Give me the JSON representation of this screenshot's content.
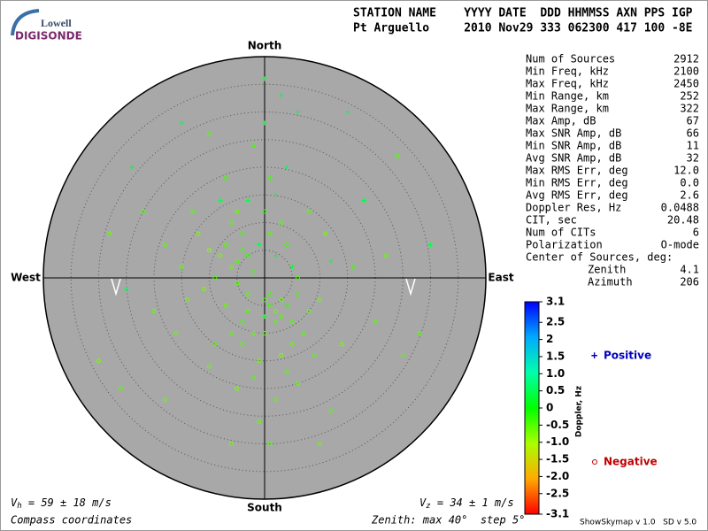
{
  "header": {
    "logo_top": "Lowell",
    "logo_bottom": "DIGISONDE",
    "labels_row": "STATION NAME    YYYY DATE  DDD HHMMSS AXN PPS IGP",
    "values_row": "Pt Arguello     2010 Nov29 333 062300 417 100 -8E"
  },
  "chart_data": {
    "type": "skymap",
    "directions": {
      "north": "North",
      "south": "South",
      "west": "West",
      "east": "East"
    },
    "rlim": [
      0,
      40
    ],
    "rticks": [
      5,
      10,
      15,
      20,
      25,
      30,
      35
    ],
    "points": {
      "x": [
        -5,
        -4,
        -6,
        -3,
        -7,
        -2,
        -5,
        -8,
        -4,
        -1,
        0,
        1,
        2,
        3,
        4,
        2,
        1,
        3,
        5,
        0,
        -2,
        -3,
        -9,
        -10,
        -6,
        -7,
        -11,
        -4,
        -3,
        6,
        7,
        8,
        5,
        4,
        3,
        2,
        1,
        0,
        -1,
        -2,
        3,
        4,
        5,
        6,
        2,
        1,
        0,
        -3,
        -4,
        -5,
        -6,
        -12,
        -14,
        -8,
        -9,
        10,
        12,
        9,
        11,
        -15,
        -13,
        -10,
        -7,
        -5,
        2,
        4,
        6,
        8,
        -2,
        -1,
        0,
        1,
        3,
        -16,
        -18,
        14,
        16,
        -20,
        20,
        18,
        -22,
        22,
        -25,
        25,
        -28,
        28,
        -30,
        30,
        -24,
        24,
        -18,
        12,
        -6,
        6,
        0,
        -10,
        10,
        -15,
        15,
        -26
      ],
      "y": [
        3,
        5,
        2,
        4,
        6,
        1,
        -1,
        4,
        8,
        6,
        -4,
        -5,
        -6,
        -7,
        -5,
        -8,
        -3,
        -4,
        -8,
        -7,
        -10,
        -6,
        0,
        5,
        10,
        -5,
        -2,
        -12,
        14,
        -3,
        -10,
        -6,
        2,
        6,
        10,
        15,
        18,
        12,
        -15,
        -18,
        -14,
        -17,
        -12,
        0,
        4,
        8,
        -10,
        -3,
        -8,
        12,
        -10,
        8,
        -4,
        14,
        -12,
        -4,
        3,
        -14,
        8,
        2,
        12,
        -16,
        18,
        -20,
        -22,
        20,
        -19,
        12,
        24,
        -26,
        28,
        -30,
        33,
        -10,
        6,
        -12,
        2,
        -6,
        -8,
        14,
        12,
        4,
        -2,
        -14,
        8,
        -10,
        -15,
        6,
        20,
        22,
        -22,
        -24,
        -30,
        30,
        36,
        26,
        -30,
        28,
        30,
        -20
      ],
      "doppler": [
        -0.5,
        -0.4,
        -0.6,
        -0.3,
        -0.5,
        -0.4,
        -0.5,
        -0.7,
        -0.4,
        0.3,
        -0.5,
        -0.4,
        -0.6,
        -0.5,
        -0.3,
        -0.5,
        -0.4,
        -0.6,
        -0.5,
        0.2,
        -0.6,
        -0.5,
        -0.4,
        -0.8,
        -0.5,
        -0.6,
        -0.7,
        -0.5,
        0.4,
        -0.4,
        -0.5,
        -0.6,
        0.3,
        -0.4,
        -0.5,
        0.5,
        -0.4,
        -0.3,
        -0.6,
        -0.5,
        -0.7,
        -0.5,
        -0.6,
        -0.4,
        0.3,
        -0.5,
        -0.6,
        -0.5,
        -0.4,
        -0.6,
        -0.5,
        -0.7,
        -0.6,
        0.4,
        -0.5,
        -0.6,
        0.4,
        -0.5,
        -0.7,
        -0.6,
        -0.5,
        -0.6,
        -0.4,
        -0.7,
        -0.5,
        0.5,
        -0.6,
        -0.5,
        -0.4,
        -0.6,
        0.3,
        -0.5,
        0.4,
        -0.6,
        -0.5,
        -0.7,
        -0.4,
        -0.6,
        -0.5,
        0.4,
        -0.5,
        -0.6,
        0.5,
        -0.5,
        -0.6,
        -0.5,
        -0.7,
        0.4,
        0.3,
        -0.5,
        -0.6,
        -0.5,
        -0.6,
        0.4,
        0.3,
        -0.5,
        -0.6,
        0.4,
        0.5,
        -0.5
      ]
    },
    "colorbar": {
      "label": "Doppler, Hz",
      "clim": [
        -3.1,
        3.1
      ],
      "cticks": [
        3.1,
        2.5,
        2,
        1.5,
        {
          "value": 1,
          "label": "1.0"
        },
        0.5,
        0,
        -0.5,
        {
          "value": -1,
          "label": "-1.0"
        },
        -1.5,
        {
          "value": -2,
          "label": "-2.0"
        },
        -2.5,
        -3.1
      ]
    },
    "legend": {
      "positive": "Positive",
      "negative": "Negative"
    }
  },
  "stats": {
    "rows": [
      [
        "Num of Sources",
        "2912"
      ],
      [
        "Min Freq, kHz",
        "2100"
      ],
      [
        "Max Freq, kHz",
        "2450"
      ],
      [
        "Min Range, km",
        "252"
      ],
      [
        "Max Range, km",
        "322"
      ],
      [
        "Max Amp, dB",
        "67"
      ],
      [
        "Max SNR Amp, dB",
        "66"
      ],
      [
        "Min SNR Amp, dB",
        "11"
      ],
      [
        "Avg SNR Amp, dB",
        "32"
      ],
      [
        "Max RMS Err, deg",
        "12.0"
      ],
      [
        "Min RMS Err, deg",
        "0.0"
      ],
      [
        "Avg RMS Err, deg",
        "2.6"
      ],
      [
        "Doppler Res, Hz",
        "0.0488"
      ],
      [
        "CIT, sec",
        "20.48"
      ],
      [
        "Num of CITs",
        "6"
      ],
      [
        "Polarization",
        "O-mode"
      ]
    ],
    "center_title": "Center of Sources, deg:",
    "center_rows": [
      [
        "Zenith",
        "4.1"
      ],
      [
        "Azimuth",
        "206"
      ]
    ]
  },
  "footer": {
    "vh": {
      "symbol": "V",
      "sub": "h",
      "rest": " = 59 ± 18 m/s"
    },
    "vz": {
      "symbol": "V",
      "sub": "z",
      "rest": " = 34 ± 1 m/s"
    },
    "coords": "Compass coordinates",
    "zenith": "Zenith: max 40°  step 5°",
    "version": "ShowSkymap v 1.0   SD v 5.0"
  }
}
